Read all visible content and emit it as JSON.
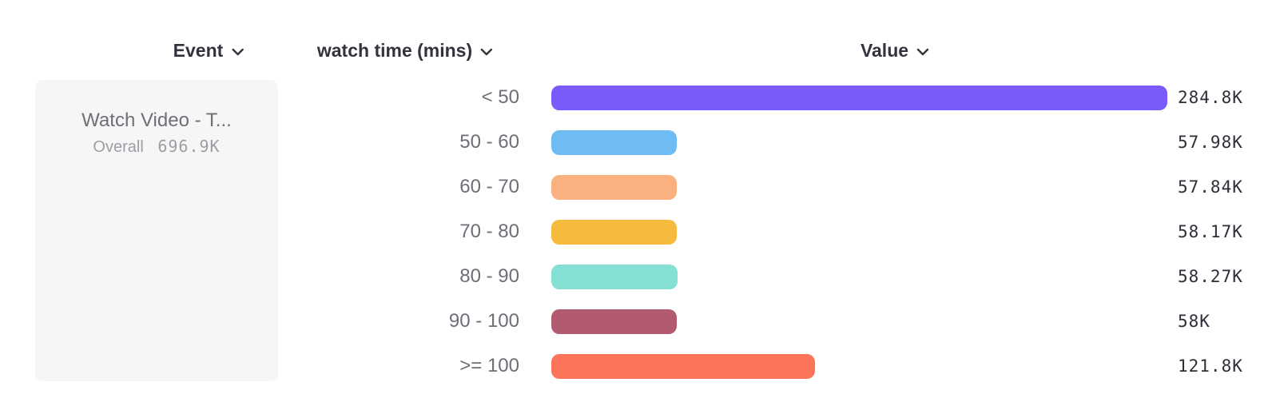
{
  "header": {
    "event": {
      "label": "Event"
    },
    "breakdown": {
      "label": "watch time (mins)"
    },
    "value": {
      "label": "Value"
    }
  },
  "event_panel": {
    "name": "Watch Video - T...",
    "overall_label": "Overall",
    "overall_value": "696.9K"
  },
  "chart_data": {
    "type": "bar",
    "orientation": "horizontal",
    "title": "",
    "breakdown_property": "watch time (mins)",
    "categories": [
      "< 50",
      "50 - 60",
      "60 - 70",
      "70 - 80",
      "80 - 90",
      "90 - 100",
      ">= 100"
    ],
    "values": [
      284800,
      57980,
      57840,
      58170,
      58270,
      58000,
      121800
    ],
    "value_labels": [
      "284.8K",
      "57.98K",
      "57.84K",
      "58.17K",
      "58.27K",
      "58K",
      "121.8K"
    ],
    "bar_colors": [
      "#7A5AFA",
      "#6FBCF4",
      "#FBB080",
      "#F6BA3C",
      "#83E0D3",
      "#B15A70",
      "#FC7459"
    ],
    "max_value": 284800,
    "overall_total_label": "696.9K",
    "xlim": [
      0,
      284800
    ],
    "grid": false,
    "legend_position": "none"
  },
  "colors": {
    "header_text": "#33333D",
    "category_label": "#6E6E78",
    "value_label": "#2E2E38",
    "event_name": "#6F6F78",
    "event_overall": "#9D9DA5",
    "panel_background": "#f6f6f7",
    "page_background": "#ffffff"
  },
  "icons": {
    "chevron_down": "v"
  }
}
